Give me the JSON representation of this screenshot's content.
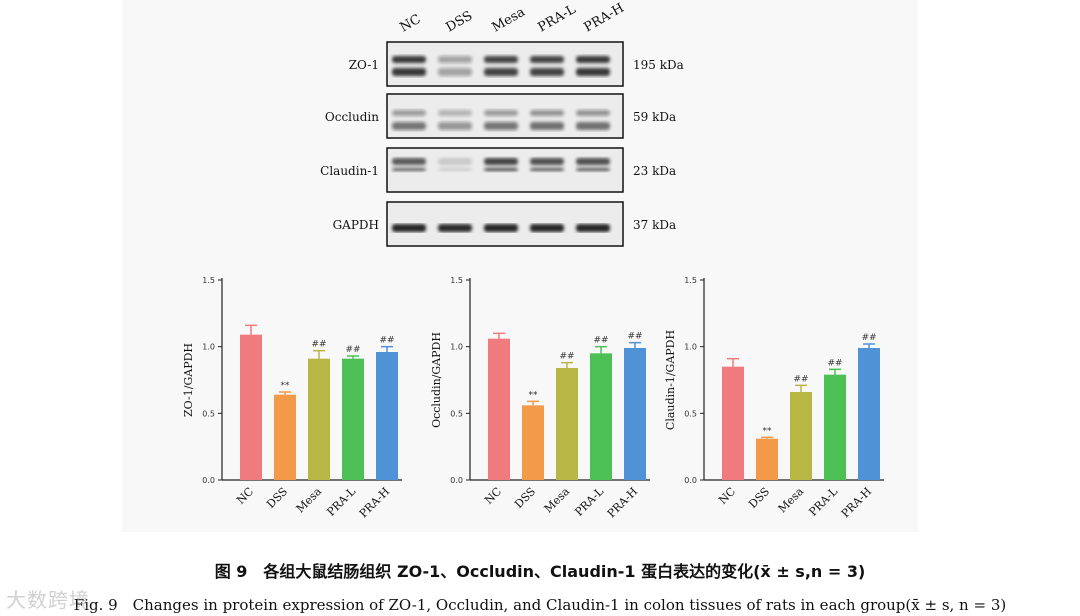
{
  "caption_cn": "图 9　各组大鼠结肠组织 ZO-1、Occludin、Claudin-1 蛋白表达的变化(x̄ ± s,n = 3)",
  "caption_en": "Fig. 9　Changes in protein expression of ZO-1, Occludin, and Claudin-1 in colon tissues of rats in each group(x̄ ± s, n = 3)",
  "watermark": "大数跨境",
  "blot": {
    "lanes": [
      "NC",
      "DSS",
      "Mesa",
      "PRA-L",
      "PRA-H"
    ],
    "proteins": [
      {
        "name": "ZO-1",
        "size": "195 kDa"
      },
      {
        "name": "Occludin",
        "size": "59 kDa"
      },
      {
        "name": "Claudin-1",
        "size": "23 kDa"
      },
      {
        "name": "GAPDH",
        "size": "37 kDa"
      }
    ]
  },
  "colors": {
    "NC": "#f07b7e",
    "DSS": "#f2994a",
    "Mesa": "#b8b645",
    "PRA-L": "#4cbf55",
    "PRA-H": "#4f92d6"
  },
  "chart_data": [
    {
      "type": "bar",
      "categories": [
        "NC",
        "DSS",
        "Mesa",
        "PRA-L",
        "PRA-H"
      ],
      "values": [
        1.09,
        0.64,
        0.91,
        0.91,
        0.96
      ],
      "errors": [
        0.07,
        0.02,
        0.06,
        0.02,
        0.04
      ],
      "annotations": [
        "",
        "**",
        "##",
        "##",
        "##"
      ],
      "ylabel": "ZO-1/GAPDH",
      "ylim": [
        0,
        1.5
      ],
      "yticks": [
        "0.0",
        "0.5",
        "1.0",
        "1.5"
      ]
    },
    {
      "type": "bar",
      "categories": [
        "NC",
        "DSS",
        "Mesa",
        "PRA-L",
        "PRA-H"
      ],
      "values": [
        1.06,
        0.56,
        0.84,
        0.95,
        0.99
      ],
      "errors": [
        0.04,
        0.03,
        0.04,
        0.05,
        0.04
      ],
      "annotations": [
        "",
        "**",
        "##",
        "##",
        "##"
      ],
      "ylabel": "Occludin/GAPDH",
      "ylim": [
        0,
        1.5
      ],
      "yticks": [
        "0.0",
        "0.5",
        "1.0",
        "1.5"
      ]
    },
    {
      "type": "bar",
      "categories": [
        "NC",
        "DSS",
        "Mesa",
        "PRA-L",
        "PRA-H"
      ],
      "values": [
        0.85,
        0.31,
        0.66,
        0.79,
        0.99
      ],
      "errors": [
        0.06,
        0.01,
        0.05,
        0.04,
        0.03
      ],
      "annotations": [
        "",
        "**",
        "##",
        "##",
        "##"
      ],
      "ylabel": "Claudin-1/GAPDH",
      "ylim": [
        0,
        1.5
      ],
      "yticks": [
        "0.0",
        "0.5",
        "1.0",
        "1.5"
      ]
    }
  ]
}
